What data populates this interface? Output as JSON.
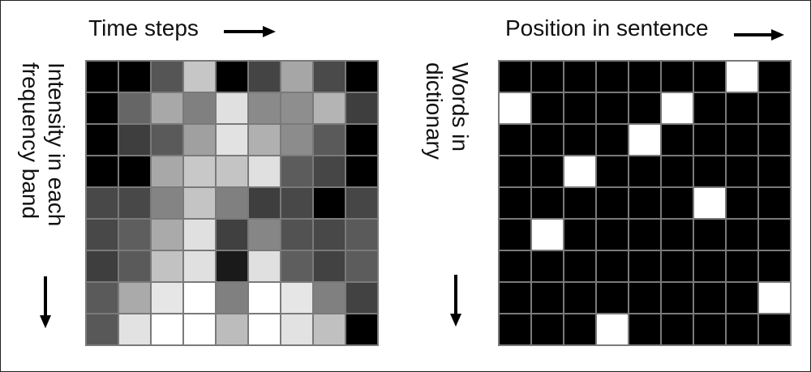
{
  "left_panel": {
    "title": "Time steps",
    "vertical_label": "Intensity in each\nfrequency band",
    "cells": [
      [
        "#000000",
        "#000000",
        "#555555",
        "#c6c6c6",
        "#000000",
        "#444444",
        "#a6a6a6",
        "#4a4a4a",
        "#000000"
      ],
      [
        "#000000",
        "#666666",
        "#a8a8a8",
        "#808080",
        "#e0e0e0",
        "#8a8a8a",
        "#8e8e8e",
        "#b4b4b4",
        "#3e3e3e"
      ],
      [
        "#000000",
        "#3e3e3e",
        "#5a5a5a",
        "#a0a0a0",
        "#e2e2e2",
        "#b0b0b0",
        "#8c8c8c",
        "#5a5a5a",
        "#000000"
      ],
      [
        "#000000",
        "#000000",
        "#a8a8a8",
        "#c8c8c8",
        "#c4c4c4",
        "#e0e0e0",
        "#5c5c5c",
        "#464646",
        "#000000"
      ],
      [
        "#484848",
        "#484848",
        "#848484",
        "#c4c4c4",
        "#808080",
        "#3e3e3e",
        "#484848",
        "#000000",
        "#464646"
      ],
      [
        "#484848",
        "#5e5e5e",
        "#aaaaaa",
        "#e0e0e0",
        "#404040",
        "#868686",
        "#525252",
        "#484848",
        "#5a5a5a"
      ],
      [
        "#3e3e3e",
        "#5a5a5a",
        "#c2c2c2",
        "#e0e0e0",
        "#1a1a1a",
        "#e0e0e0",
        "#5e5e5e",
        "#424242",
        "#5c5c5c"
      ],
      [
        "#5a5a5a",
        "#aaaaaa",
        "#e6e6e6",
        "#ffffff",
        "#808080",
        "#ffffff",
        "#e6e6e6",
        "#808080",
        "#424242"
      ],
      [
        "#585858",
        "#e2e2e2",
        "#ffffff",
        "#ffffff",
        "#bcbcbc",
        "#ffffff",
        "#e2e2e2",
        "#c0c0c0",
        "#000000"
      ]
    ]
  },
  "right_panel": {
    "title": "Position in sentence",
    "vertical_label": "Words in\ndictionary",
    "cells": [
      [
        "#000000",
        "#000000",
        "#000000",
        "#000000",
        "#000000",
        "#000000",
        "#000000",
        "#ffffff",
        "#000000"
      ],
      [
        "#ffffff",
        "#000000",
        "#000000",
        "#000000",
        "#000000",
        "#ffffff",
        "#000000",
        "#000000",
        "#000000"
      ],
      [
        "#000000",
        "#000000",
        "#000000",
        "#000000",
        "#ffffff",
        "#000000",
        "#000000",
        "#000000",
        "#000000"
      ],
      [
        "#000000",
        "#000000",
        "#ffffff",
        "#000000",
        "#000000",
        "#000000",
        "#000000",
        "#000000",
        "#000000"
      ],
      [
        "#000000",
        "#000000",
        "#000000",
        "#000000",
        "#000000",
        "#000000",
        "#ffffff",
        "#000000",
        "#000000"
      ],
      [
        "#000000",
        "#ffffff",
        "#000000",
        "#000000",
        "#000000",
        "#000000",
        "#000000",
        "#000000",
        "#000000"
      ],
      [
        "#000000",
        "#000000",
        "#000000",
        "#000000",
        "#000000",
        "#000000",
        "#000000",
        "#000000",
        "#000000"
      ],
      [
        "#000000",
        "#000000",
        "#000000",
        "#000000",
        "#000000",
        "#000000",
        "#000000",
        "#000000",
        "#ffffff"
      ],
      [
        "#000000",
        "#000000",
        "#000000",
        "#ffffff",
        "#000000",
        "#000000",
        "#000000",
        "#000000",
        "#000000"
      ]
    ]
  },
  "icons": {
    "right_arrow": "arrow-right-icon",
    "down_arrow": "arrow-down-icon"
  }
}
